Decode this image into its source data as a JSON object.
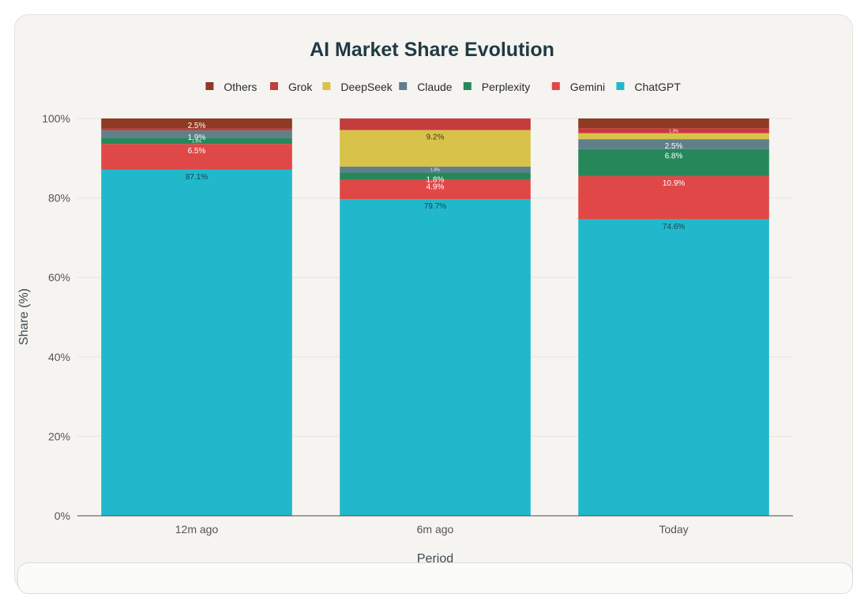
{
  "colors": {
    "ChatGPT": "#21b8cc",
    "Gemini": "#e04848",
    "Perplexity": "#26885a",
    "Claude": "#5f7f8a",
    "DeepSeek": "#d8c24a",
    "Grok": "#c43c3c",
    "Others": "#8f3a22"
  },
  "chart_data": {
    "type": "bar",
    "stacked": true,
    "title": "AI Market Share Evolution",
    "xlabel": "Period",
    "ylabel": "Share (%)",
    "ylim": [
      0,
      100
    ],
    "y_ticks": [
      "0%",
      "20%",
      "40%",
      "60%",
      "80%",
      "100%"
    ],
    "grid": true,
    "legend_position": "top",
    "legend_order": [
      "Others",
      "Grok",
      "DeepSeek",
      "Claude",
      "Perplexity",
      "Gemini",
      "ChatGPT"
    ],
    "categories": [
      "12m ago",
      "6m ago",
      "Today"
    ],
    "series": [
      {
        "name": "ChatGPT",
        "values": [
          87.1,
          79.7,
          74.6
        ],
        "labels": [
          "87.1%",
          "79.7%",
          "74.6%"
        ]
      },
      {
        "name": "Gemini",
        "values": [
          6.5,
          4.9,
          10.9
        ],
        "labels": [
          "6.5%",
          "4.9%",
          "10.9%"
        ]
      },
      {
        "name": "Perplexity",
        "values": [
          1.5,
          1.8,
          6.8
        ],
        "labels": [
          "1.5%",
          "1.8%",
          "6.8%"
        ]
      },
      {
        "name": "Claude",
        "values": [
          1.9,
          1.5,
          2.5
        ],
        "labels": [
          "1.9%",
          "1.5%",
          "2.5%"
        ]
      },
      {
        "name": "DeepSeek",
        "values": [
          0.0,
          9.2,
          1.5
        ],
        "labels": [
          "",
          "9.2%",
          ""
        ]
      },
      {
        "name": "Grok",
        "values": [
          0.5,
          2.9,
          1.3
        ],
        "labels": [
          "",
          "",
          "1.3%"
        ]
      },
      {
        "name": "Others",
        "values": [
          2.5,
          0.0,
          2.4
        ],
        "labels": [
          "2.5%",
          "",
          ""
        ]
      }
    ]
  }
}
